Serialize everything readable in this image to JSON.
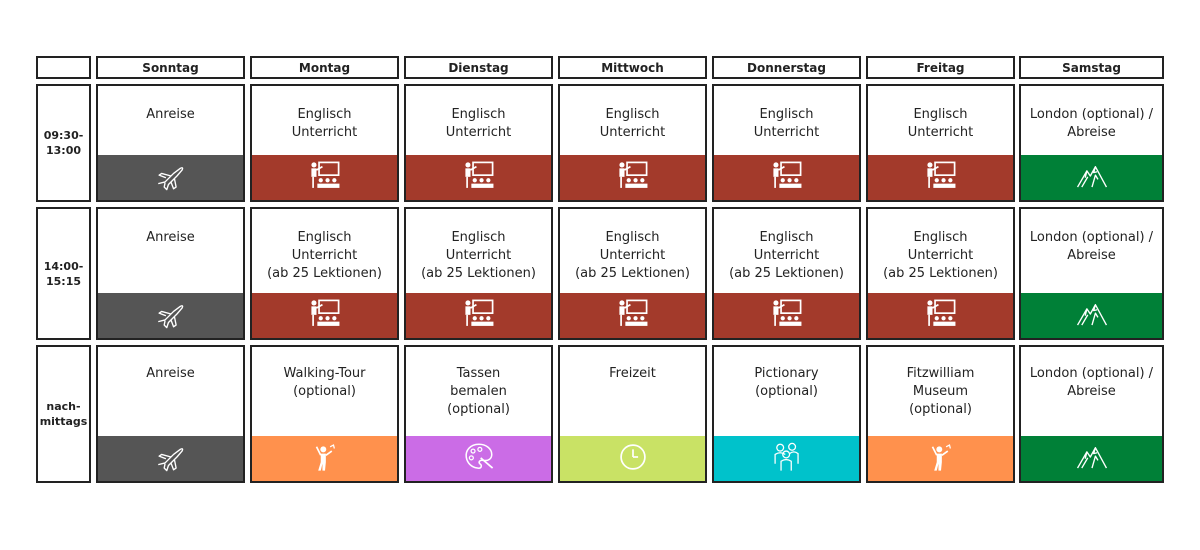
{
  "corner": "",
  "days": [
    "Sonntag",
    "Montag",
    "Dienstag",
    "Mittwoch",
    "Donnerstag",
    "Freitag",
    "Samstag"
  ],
  "times": [
    "09:30-\n13:00",
    "14:00-\n15:15",
    "nach-\nmittags"
  ],
  "colors": {
    "travel": "#555555",
    "lesson": "#a33a2b",
    "activity_orange": "#ff914d",
    "painting": "#cb6ce6",
    "free": "#c9e265",
    "game": "#00c2cb",
    "london": "#008037"
  },
  "rows": [
    [
      {
        "text": "Anreise",
        "icon": "airplane-icon",
        "color": "travel"
      },
      {
        "text": "Englisch\nUnterricht",
        "icon": "teacher-class-icon",
        "color": "lesson"
      },
      {
        "text": "Englisch\nUnterricht",
        "icon": "teacher-class-icon",
        "color": "lesson"
      },
      {
        "text": "Englisch\nUnterricht",
        "icon": "teacher-class-icon",
        "color": "lesson"
      },
      {
        "text": "Englisch\nUnterricht",
        "icon": "teacher-class-icon",
        "color": "lesson"
      },
      {
        "text": "Englisch\nUnterricht",
        "icon": "teacher-class-icon",
        "color": "lesson"
      },
      {
        "text": "London (optional) /\nAbreise",
        "icon": "mountain-icon",
        "color": "london"
      }
    ],
    [
      {
        "text": "Anreise",
        "icon": "airplane-icon",
        "color": "travel"
      },
      {
        "text": "Englisch\nUnterricht\n(ab 25 Lektionen)",
        "icon": "teacher-class-icon",
        "color": "lesson"
      },
      {
        "text": "Englisch\nUnterricht\n(ab 25 Lektionen)",
        "icon": "teacher-class-icon",
        "color": "lesson"
      },
      {
        "text": "Englisch\nUnterricht\n(ab 25 Lektionen)",
        "icon": "teacher-class-icon",
        "color": "lesson"
      },
      {
        "text": "Englisch\nUnterricht\n(ab 25 Lektionen)",
        "icon": "teacher-class-icon",
        "color": "lesson"
      },
      {
        "text": "Englisch\nUnterricht\n(ab 25 Lektionen)",
        "icon": "teacher-class-icon",
        "color": "lesson"
      },
      {
        "text": "London (optional) /\nAbreise",
        "icon": "mountain-icon",
        "color": "london"
      }
    ],
    [
      {
        "text": "Anreise",
        "icon": "airplane-icon",
        "color": "travel"
      },
      {
        "text": "Walking-Tour\n(optional)",
        "icon": "tour-guide-icon",
        "color": "activity_orange"
      },
      {
        "text": "Tassen\nbemalen\n(optional)",
        "icon": "paint-palette-icon",
        "color": "painting"
      },
      {
        "text": "Freizeit",
        "icon": "clock-icon",
        "color": "free"
      },
      {
        "text": "Pictionary\n(optional)",
        "icon": "people-group-icon",
        "color": "game"
      },
      {
        "text": "Fitzwilliam\nMuseum\n(optional)",
        "icon": "tour-guide-icon",
        "color": "activity_orange"
      },
      {
        "text": "London (optional) /\nAbreise",
        "icon": "mountain-icon",
        "color": "london"
      }
    ]
  ]
}
